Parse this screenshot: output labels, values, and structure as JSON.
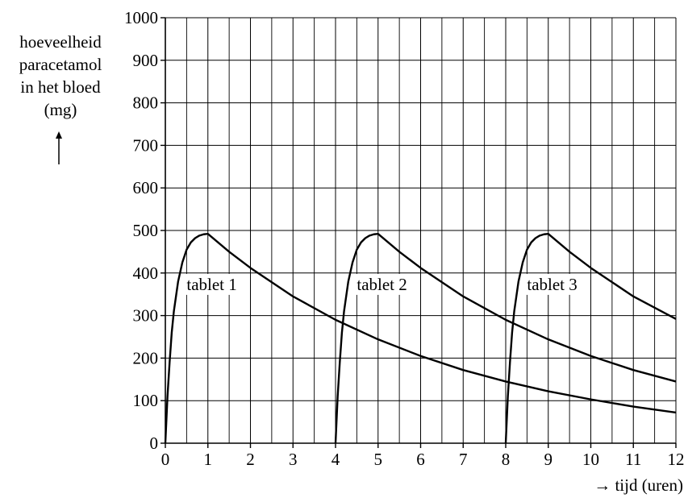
{
  "chart_data": {
    "type": "line",
    "ylabel_lines": [
      "hoeveelheid",
      "paracetamol",
      "in het bloed",
      "(mg)"
    ],
    "xlabel": "tijd (uren)",
    "xlim": [
      0,
      12
    ],
    "ylim": [
      0,
      1000
    ],
    "x_ticks": [
      0,
      1,
      2,
      3,
      4,
      5,
      6,
      7,
      8,
      9,
      10,
      11,
      12
    ],
    "y_ticks": [
      0,
      100,
      200,
      300,
      400,
      500,
      600,
      700,
      800,
      900,
      1000
    ],
    "x_minor_step": 0.5,
    "grid": true,
    "series": [
      {
        "name": "tablet 1",
        "label_at": [
          0.5,
          360
        ],
        "points": [
          [
            0,
            0
          ],
          [
            0.05,
            110
          ],
          [
            0.1,
            190
          ],
          [
            0.15,
            260
          ],
          [
            0.2,
            310
          ],
          [
            0.3,
            380
          ],
          [
            0.4,
            425
          ],
          [
            0.5,
            455
          ],
          [
            0.6,
            472
          ],
          [
            0.7,
            482
          ],
          [
            0.8,
            488
          ],
          [
            0.9,
            491
          ],
          [
            1,
            492
          ],
          [
            1.5,
            450
          ],
          [
            2,
            412
          ],
          [
            3,
            345
          ],
          [
            4,
            290
          ],
          [
            5,
            244
          ],
          [
            6,
            205
          ],
          [
            7,
            172
          ],
          [
            8,
            145
          ],
          [
            9,
            122
          ],
          [
            10,
            103
          ],
          [
            11,
            86
          ],
          [
            12,
            72
          ]
        ]
      },
      {
        "name": "tablet 2",
        "label_at": [
          4.5,
          360
        ],
        "points": [
          [
            4,
            0
          ],
          [
            4.05,
            110
          ],
          [
            4.1,
            190
          ],
          [
            4.15,
            260
          ],
          [
            4.2,
            310
          ],
          [
            4.3,
            380
          ],
          [
            4.4,
            425
          ],
          [
            4.5,
            455
          ],
          [
            4.6,
            472
          ],
          [
            4.7,
            482
          ],
          [
            4.8,
            488
          ],
          [
            4.9,
            491
          ],
          [
            5,
            492
          ],
          [
            5.5,
            450
          ],
          [
            6,
            412
          ],
          [
            7,
            345
          ],
          [
            8,
            290
          ],
          [
            9,
            244
          ],
          [
            10,
            205
          ],
          [
            11,
            172
          ],
          [
            12,
            145
          ]
        ]
      },
      {
        "name": "tablet 3",
        "label_at": [
          8.5,
          360
        ],
        "points": [
          [
            8,
            0
          ],
          [
            8.05,
            110
          ],
          [
            8.1,
            190
          ],
          [
            8.15,
            260
          ],
          [
            8.2,
            310
          ],
          [
            8.3,
            380
          ],
          [
            8.4,
            425
          ],
          [
            8.5,
            455
          ],
          [
            8.6,
            472
          ],
          [
            8.7,
            482
          ],
          [
            8.8,
            488
          ],
          [
            8.9,
            491
          ],
          [
            9,
            492
          ],
          [
            9.5,
            450
          ],
          [
            10,
            412
          ],
          [
            11,
            345
          ],
          [
            12,
            292
          ]
        ]
      }
    ]
  }
}
